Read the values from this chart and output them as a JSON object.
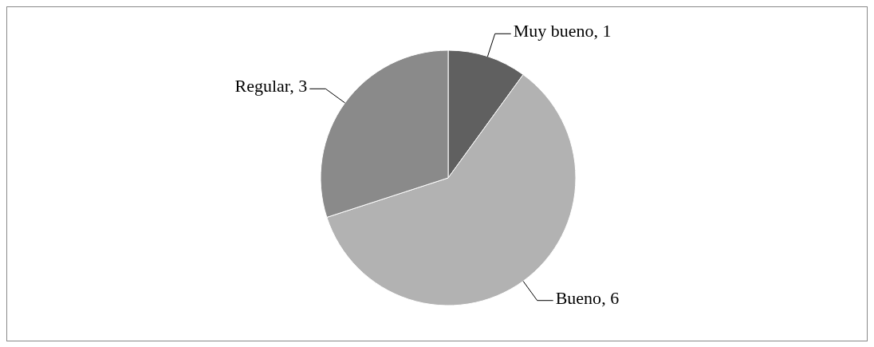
{
  "chart_data": {
    "type": "pie",
    "categories": [
      "Muy bueno",
      "Bueno",
      "Regular"
    ],
    "values": [
      1,
      6,
      3
    ],
    "colors": [
      "#606060",
      "#b2b2b2",
      "#8a8a8a"
    ],
    "value_labels": [
      ", 1",
      ", 6",
      ", 3"
    ],
    "legend": false
  }
}
